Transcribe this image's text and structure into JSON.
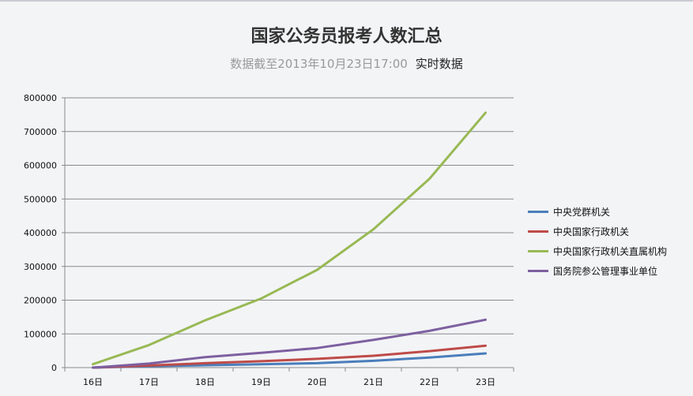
{
  "header": {
    "title": "国家公务员报考人数汇总",
    "subtitle": "数据截至2013年10月23日17:00",
    "realtime": "实时数据"
  },
  "chart_data": {
    "type": "line",
    "title": "国家公务员报考人数汇总",
    "xlabel": "",
    "ylabel": "",
    "categories": [
      "16日",
      "17日",
      "18日",
      "19日",
      "20日",
      "21日",
      "22日",
      "23日"
    ],
    "ylim": [
      0,
      800000
    ],
    "yticks": [
      0,
      100000,
      200000,
      300000,
      400000,
      500000,
      600000,
      700000,
      800000
    ],
    "ytick_labels": [
      "0",
      "100000",
      "200000",
      "300000",
      "400000",
      "500000",
      "600000",
      "700000",
      "800000"
    ],
    "grid": true,
    "legend_position": "right",
    "series": [
      {
        "name": "中央党群机关",
        "color": "#4a7ebb",
        "values": [
          0,
          4000,
          7000,
          10000,
          13000,
          20000,
          30000,
          42000
        ]
      },
      {
        "name": "中央国家行政机关",
        "color": "#be4b48",
        "values": [
          0,
          6000,
          13000,
          19000,
          26000,
          35000,
          49000,
          65000
        ]
      },
      {
        "name": "中央国家行政机关直属机构",
        "color": "#98b954",
        "values": [
          10000,
          67000,
          140000,
          205000,
          290000,
          410000,
          560000,
          756000
        ]
      },
      {
        "name": "国务院参公管理事业单位",
        "color": "#7d60a0",
        "values": [
          0,
          12000,
          31000,
          44000,
          58000,
          82000,
          109000,
          142000
        ]
      }
    ]
  }
}
